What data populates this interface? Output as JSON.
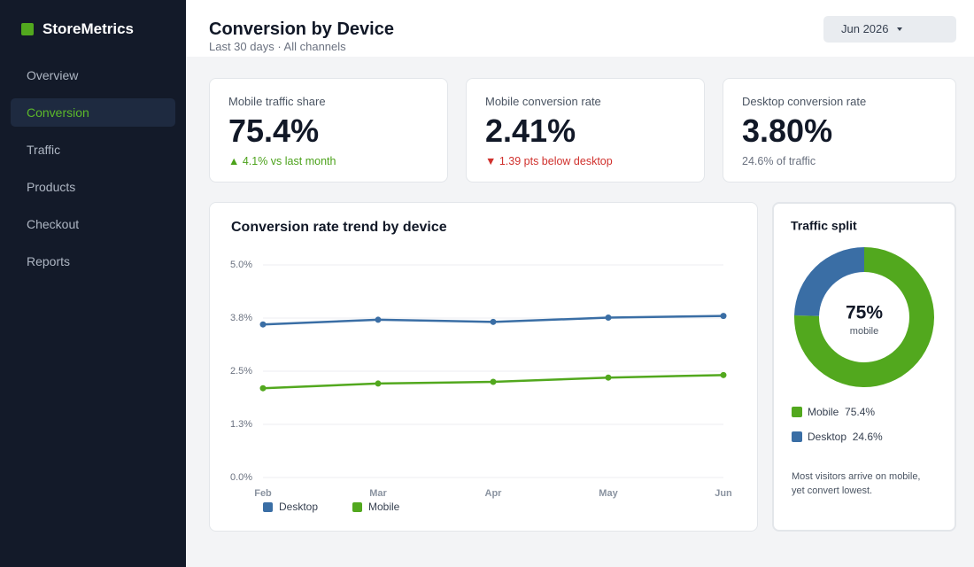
{
  "sidebar": {
    "brand": "StoreMetrics",
    "nav": [
      "Overview",
      "Conversion",
      "Traffic",
      "Products",
      "Checkout",
      "Reports"
    ],
    "active": 1
  },
  "header": {
    "title": "Conversion by Device",
    "subtitle": "Last 30 days · All channels",
    "date_picker": "Jun 2026"
  },
  "kpis": [
    {
      "label": "Mobile traffic share",
      "value": "75.4%",
      "note": "▲ 4.1% vs last month",
      "note_color": "#4ca21b"
    },
    {
      "label": "Mobile conversion rate",
      "value": "2.41%",
      "note": "▼ 1.39 pts below desktop",
      "note_color": "#d0312d"
    },
    {
      "label": "Desktop conversion rate",
      "value": "3.80%",
      "note": "24.6% of traffic",
      "note_color": "#6b7280"
    }
  ],
  "chart_data": [
    {
      "type": "line",
      "title": "Conversion rate trend by device",
      "categories": [
        "Feb",
        "Mar",
        "Apr",
        "May",
        "Jun"
      ],
      "series": [
        {
          "name": "Desktop",
          "color": "#3a6ea5",
          "values": [
            3.6,
            3.71,
            3.66,
            3.76,
            3.8
          ]
        },
        {
          "name": "Mobile",
          "color": "#52a81e",
          "values": [
            2.1,
            2.21,
            2.25,
            2.35,
            2.41
          ]
        }
      ],
      "ylim": [
        0,
        5
      ],
      "yticks": [
        {
          "value": 0,
          "label": "0.0%"
        },
        {
          "value": 1.25,
          "label": "1.3%"
        },
        {
          "value": 2.5,
          "label": "2.5%"
        },
        {
          "value": 3.75,
          "label": "3.8%"
        },
        {
          "value": 5,
          "label": "5.0%"
        }
      ],
      "grid": true
    },
    {
      "type": "donut",
      "title": "Traffic split",
      "categories": [
        "Mobile",
        "Desktop"
      ],
      "values": [
        75.4,
        24.6
      ],
      "value_labels": [
        "75.4%",
        "24.6%"
      ],
      "colors": [
        "#52a81e",
        "#3a6ea5"
      ],
      "center_label": "75%",
      "center_sublabel": "mobile",
      "note": "Most visitors arrive on mobile, yet convert lowest."
    }
  ]
}
